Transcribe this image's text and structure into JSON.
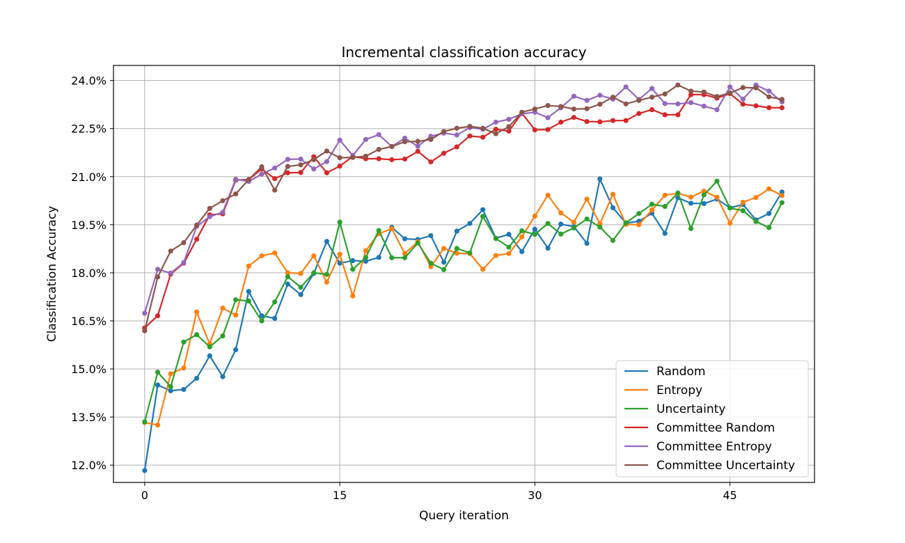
{
  "chart_data": {
    "type": "line",
    "title": "Incremental classification accuracy",
    "xlabel": "Query iteration",
    "ylabel": "Classification Accuracy",
    "xlim": [
      -2.4,
      51.5
    ],
    "ylim": [
      0.1146,
      0.2447
    ],
    "xticks": [
      0,
      15,
      30,
      45
    ],
    "xtick_labels": [
      "0",
      "15",
      "30",
      "45"
    ],
    "yticks": [
      0.12,
      0.135,
      0.15,
      0.165,
      0.18,
      0.195,
      0.21,
      0.225,
      0.24
    ],
    "ytick_labels": [
      "12.0%",
      "13.5%",
      "15.0%",
      "16.5%",
      "18.0%",
      "19.5%",
      "21.0%",
      "22.5%",
      "24.0%"
    ],
    "grid": true,
    "legend_position": "lower-right",
    "x": [
      0,
      1,
      2,
      3,
      4,
      5,
      6,
      7,
      8,
      9,
      10,
      11,
      12,
      13,
      14,
      15,
      16,
      17,
      18,
      19,
      20,
      21,
      22,
      23,
      24,
      25,
      26,
      27,
      28,
      29,
      30,
      31,
      32,
      33,
      34,
      35,
      36,
      37,
      38,
      39,
      40,
      41,
      42,
      43,
      44,
      45,
      46,
      47,
      48,
      49
    ],
    "series": [
      {
        "name": "Random",
        "color": "#1f77b4",
        "values": [
          0.1183,
          0.145,
          0.1432,
          0.1436,
          0.1471,
          0.1541,
          0.1476,
          0.156,
          0.1742,
          0.1666,
          0.1658,
          0.1765,
          0.1732,
          0.1798,
          0.1898,
          0.183,
          0.1838,
          0.1836,
          0.1848,
          0.1942,
          0.1906,
          0.1904,
          0.1916,
          0.1833,
          0.193,
          0.1954,
          0.1997,
          0.1908,
          0.192,
          0.1866,
          0.1936,
          0.1877,
          0.1952,
          0.1944,
          0.1892,
          0.2093,
          0.2003,
          0.1955,
          0.1961,
          0.1986,
          0.1923,
          0.2034,
          0.2017,
          0.2016,
          0.203,
          0.2003,
          0.2013,
          0.1965,
          0.1985,
          0.2052
        ]
      },
      {
        "name": "Entropy",
        "color": "#ff7f0e",
        "values": [
          0.1333,
          0.1325,
          0.1485,
          0.1503,
          0.1678,
          0.1578,
          0.169,
          0.1668,
          0.1821,
          0.1853,
          0.1862,
          0.18,
          0.1798,
          0.1853,
          0.1771,
          0.1858,
          0.1728,
          0.1869,
          0.1922,
          0.1938,
          0.186,
          0.1897,
          0.1819,
          0.1876,
          0.1861,
          0.186,
          0.1811,
          0.1854,
          0.186,
          0.1912,
          0.1977,
          0.2042,
          0.1987,
          0.1958,
          0.203,
          0.1953,
          0.2045,
          0.1951,
          0.195,
          0.1996,
          0.2042,
          0.2048,
          0.2036,
          0.2055,
          0.2036,
          0.1955,
          0.202,
          0.2035,
          0.2062,
          0.2041
        ]
      },
      {
        "name": "Uncertainty",
        "color": "#2ca02c",
        "values": [
          0.1335,
          0.149,
          0.1445,
          0.1584,
          0.1607,
          0.1569,
          0.1603,
          0.1716,
          0.1712,
          0.165,
          0.1709,
          0.1788,
          0.1755,
          0.18,
          0.1795,
          0.1958,
          0.1811,
          0.1848,
          0.1932,
          0.1847,
          0.1847,
          0.1893,
          0.183,
          0.181,
          0.1876,
          0.1862,
          0.1976,
          0.1907,
          0.188,
          0.1931,
          0.192,
          0.1954,
          0.1921,
          0.194,
          0.1968,
          0.1943,
          0.1901,
          0.1956,
          0.1985,
          0.2014,
          0.2007,
          0.2049,
          0.1938,
          0.2043,
          0.2086,
          0.2002,
          0.1994,
          0.196,
          0.1941,
          0.2019
        ]
      },
      {
        "name": "Committee Random",
        "color": "#d62728",
        "values": [
          0.1628,
          0.1666,
          0.1796,
          0.183,
          0.1905,
          0.1981,
          0.1984,
          0.2089,
          0.2091,
          0.2124,
          0.2094,
          0.2112,
          0.2113,
          0.2162,
          0.2112,
          0.2133,
          0.2163,
          0.2156,
          0.2156,
          0.2153,
          0.2155,
          0.2179,
          0.2146,
          0.2173,
          0.2193,
          0.2227,
          0.2223,
          0.2248,
          0.2242,
          0.2298,
          0.2246,
          0.2247,
          0.227,
          0.2285,
          0.2272,
          0.2271,
          0.2275,
          0.2275,
          0.2297,
          0.2309,
          0.2293,
          0.2293,
          0.2356,
          0.2356,
          0.2345,
          0.2359,
          0.2326,
          0.2321,
          0.2315,
          0.2315
        ]
      },
      {
        "name": "Committee Entropy",
        "color": "#9467bd",
        "values": [
          0.1674,
          0.1811,
          0.1799,
          0.1832,
          0.1945,
          0.1975,
          0.1989,
          0.2092,
          0.2085,
          0.2108,
          0.2127,
          0.2154,
          0.2155,
          0.2124,
          0.2147,
          0.2214,
          0.2166,
          0.2216,
          0.2231,
          0.2194,
          0.222,
          0.2195,
          0.2226,
          0.2236,
          0.223,
          0.2253,
          0.2248,
          0.227,
          0.2279,
          0.2296,
          0.2301,
          0.2284,
          0.2315,
          0.2351,
          0.2338,
          0.2354,
          0.2342,
          0.238,
          0.2341,
          0.2375,
          0.2328,
          0.2327,
          0.2331,
          0.232,
          0.2309,
          0.238,
          0.2342,
          0.2386,
          0.2367,
          0.2333
        ]
      },
      {
        "name": "Committee Uncertainty",
        "color": "#8c564b",
        "values": [
          0.1619,
          0.1787,
          0.1868,
          0.1894,
          0.1949,
          0.2001,
          0.2025,
          0.2046,
          0.2091,
          0.2131,
          0.2058,
          0.2132,
          0.2137,
          0.2153,
          0.218,
          0.2159,
          0.216,
          0.2164,
          0.2185,
          0.2194,
          0.2209,
          0.221,
          0.2216,
          0.2241,
          0.2251,
          0.2257,
          0.2251,
          0.2234,
          0.2256,
          0.2301,
          0.2311,
          0.2322,
          0.2319,
          0.2311,
          0.2312,
          0.2326,
          0.2348,
          0.2327,
          0.2338,
          0.2348,
          0.2358,
          0.2386,
          0.2367,
          0.2364,
          0.235,
          0.2361,
          0.2378,
          0.2377,
          0.2349,
          0.2341
        ]
      }
    ]
  }
}
